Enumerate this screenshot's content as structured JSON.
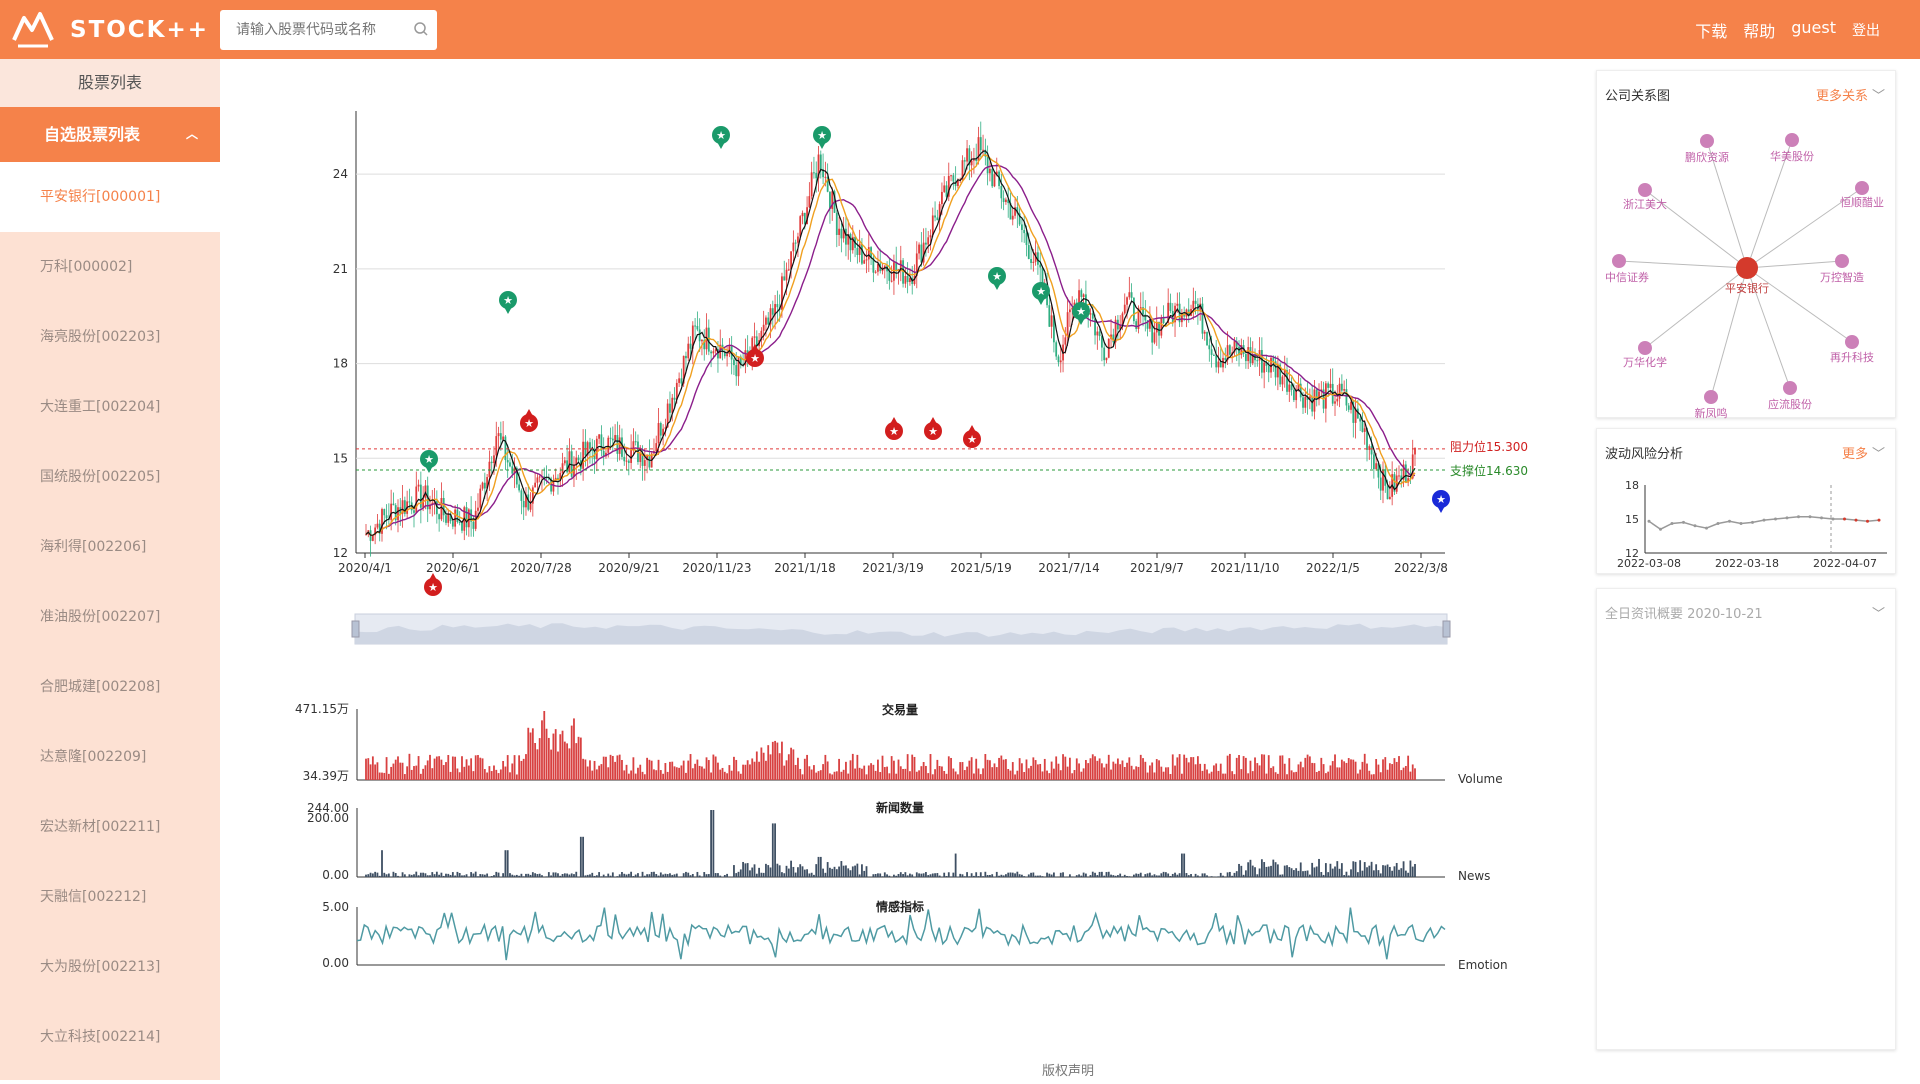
{
  "header": {
    "logo_text": "STOCK++",
    "search_placeholder": "请输入股票代码或名称",
    "nav": [
      "下载",
      "帮助",
      "guest",
      "登出"
    ]
  },
  "sidebar": {
    "title": "股票列表",
    "group": "自选股票列表",
    "items": [
      {
        "label": "平安银行[000001]",
        "active": true
      },
      {
        "label": "万科[000002]"
      },
      {
        "label": "海亮股份[002203]"
      },
      {
        "label": "大连重工[002204]"
      },
      {
        "label": "国统股份[002205]"
      },
      {
        "label": "海利得[002206]"
      },
      {
        "label": "准油股份[002207]"
      },
      {
        "label": "合肥城建[002208]"
      },
      {
        "label": "达意隆[002209]"
      },
      {
        "label": "宏达新材[002211]"
      },
      {
        "label": "天融信[002212]"
      },
      {
        "label": "大为股份[002213]"
      },
      {
        "label": "大立科技[002214]"
      }
    ]
  },
  "kline": {
    "y_ticks": [
      "24",
      "21",
      "18",
      "15",
      "12"
    ],
    "x_ticks": [
      "2020/4/1",
      "2020/6/1",
      "2020/7/28",
      "2020/9/21",
      "2020/11/23",
      "2021/1/18",
      "2021/3/19",
      "2021/5/19",
      "2021/7/14",
      "2021/9/7",
      "2021/11/10",
      "2022/1/5",
      "2022/3/8"
    ],
    "resistance_label": "阻力位15.300",
    "support_label": "支撑位14.630",
    "resistance": 15.3,
    "support": 14.63,
    "ylim": [
      12,
      26
    ]
  },
  "volume": {
    "title": "交易量",
    "max_label": "471.15万",
    "min_label": "34.39万",
    "series_label": "Volume"
  },
  "news": {
    "title": "新闻数量",
    "max_label": "244.00",
    "mid_label": "200.00",
    "min_label": "0.00",
    "series_label": "News"
  },
  "emotion": {
    "title": "情感指标",
    "max_label": "5.00",
    "min_label": "0.00",
    "series_label": "Emotion"
  },
  "relation_panel": {
    "title": "公司关系图",
    "more": "更多关系",
    "center": "平安银行",
    "nodes": [
      "鹏欣资源",
      "华美股份",
      "恒顺醋业",
      "万控智造",
      "再升科技",
      "应流股份",
      "新凤鸣",
      "万华化学",
      "中信证券",
      "浙江美大"
    ]
  },
  "risk_panel": {
    "title": "波动风险分析",
    "more": "更多",
    "y_ticks": [
      "18",
      "15",
      "12"
    ],
    "x_ticks": [
      "2022-03-08",
      "2022-03-18",
      "2022-04-07"
    ]
  },
  "news_panel": {
    "title": "全日资讯概要 2020-10-21"
  },
  "footer": "版权声明",
  "colors": {
    "accent": "#f5824a",
    "up": "#e03a3a",
    "down": "#2fae82",
    "ma_purple": "#8b1e8b",
    "ma_orange": "#f0a020",
    "news": "#3e4f63",
    "emotion": "#4f9aa3"
  }
}
